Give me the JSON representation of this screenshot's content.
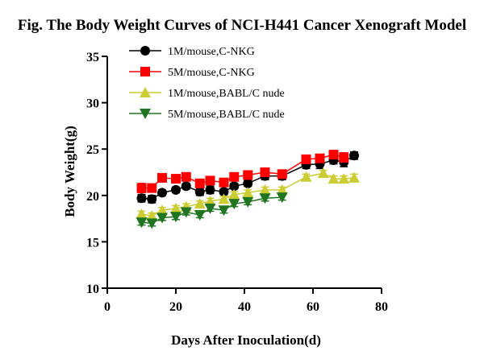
{
  "chart_data": {
    "type": "line",
    "title": "Fig. The Body Weight Curves of NCI-H441 Cancer Xenograft Model",
    "xlabel": "Days After Inoculation(d)",
    "ylabel": "Body Weight(g)",
    "xlim": [
      0,
      80
    ],
    "ylim": [
      10,
      35
    ],
    "xticks": [
      0,
      20,
      40,
      60,
      80
    ],
    "yticks": [
      10,
      15,
      20,
      25,
      30,
      35
    ],
    "grid": false,
    "legend": "top-center",
    "series": [
      {
        "name": "1M/mouse,C-NKG",
        "color": "#000000",
        "marker": "circle",
        "x": [
          10,
          13,
          16,
          20,
          23,
          27,
          30,
          34,
          37,
          41,
          46,
          51,
          58,
          62,
          66,
          69,
          72
        ],
        "y": [
          19.7,
          19.6,
          20.3,
          20.6,
          21.0,
          20.4,
          20.6,
          20.4,
          21.0,
          21.3,
          22.1,
          22.1,
          23.3,
          23.4,
          23.8,
          23.6,
          24.3
        ],
        "err": [
          0.4,
          0.4,
          0.3,
          0.3,
          0.3,
          0.4,
          0.4,
          0.3,
          0.3,
          0.3,
          0.4,
          0.4,
          0.4,
          0.5,
          0.4,
          0.5,
          0.4
        ]
      },
      {
        "name": "5M/mouse,C-NKG",
        "color": "#ff0000",
        "marker": "square",
        "x": [
          10,
          13,
          16,
          20,
          23,
          27,
          30,
          34,
          37,
          41,
          46,
          51,
          58,
          62,
          66,
          69
        ],
        "y": [
          20.8,
          20.8,
          21.9,
          21.8,
          22.0,
          21.3,
          21.6,
          21.4,
          22.0,
          22.2,
          22.5,
          22.3,
          23.9,
          24.0,
          24.4,
          24.1
        ],
        "err": [
          0.5,
          0.4,
          0.4,
          0.3,
          0.3,
          0.4,
          0.4,
          0.4,
          0.3,
          0.3,
          0.4,
          0.4,
          0.4,
          0.4,
          0.4,
          0.5
        ]
      },
      {
        "name": "1M/mouse,BABL/C nude",
        "color": "#cccc33",
        "marker": "triangle-up",
        "x": [
          10,
          13,
          16,
          20,
          23,
          27,
          30,
          34,
          37,
          41,
          46,
          51,
          58,
          63,
          66,
          69,
          72
        ],
        "y": [
          18.0,
          17.8,
          18.4,
          18.6,
          18.8,
          19.1,
          19.4,
          19.6,
          20.1,
          20.3,
          20.6,
          20.6,
          22.0,
          22.4,
          21.8,
          21.8,
          21.9
        ],
        "err": [
          0.3,
          0.3,
          0.3,
          0.3,
          0.3,
          0.3,
          0.3,
          0.3,
          0.3,
          0.3,
          0.3,
          0.3,
          0.3,
          0.3,
          0.3,
          0.3,
          0.4
        ]
      },
      {
        "name": "5M/mouse,BABL/C nude",
        "color": "#207520",
        "marker": "triangle-down",
        "x": [
          10,
          13,
          16,
          20,
          23,
          27,
          30,
          34,
          37,
          41,
          46,
          51
        ],
        "y": [
          17.1,
          17.0,
          17.6,
          17.7,
          18.2,
          17.9,
          18.6,
          18.4,
          19.1,
          19.3,
          19.7,
          19.8
        ],
        "err": [
          0.3,
          0.3,
          0.3,
          0.3,
          0.3,
          0.3,
          0.3,
          0.3,
          0.3,
          0.3,
          0.3,
          0.3
        ]
      }
    ]
  }
}
